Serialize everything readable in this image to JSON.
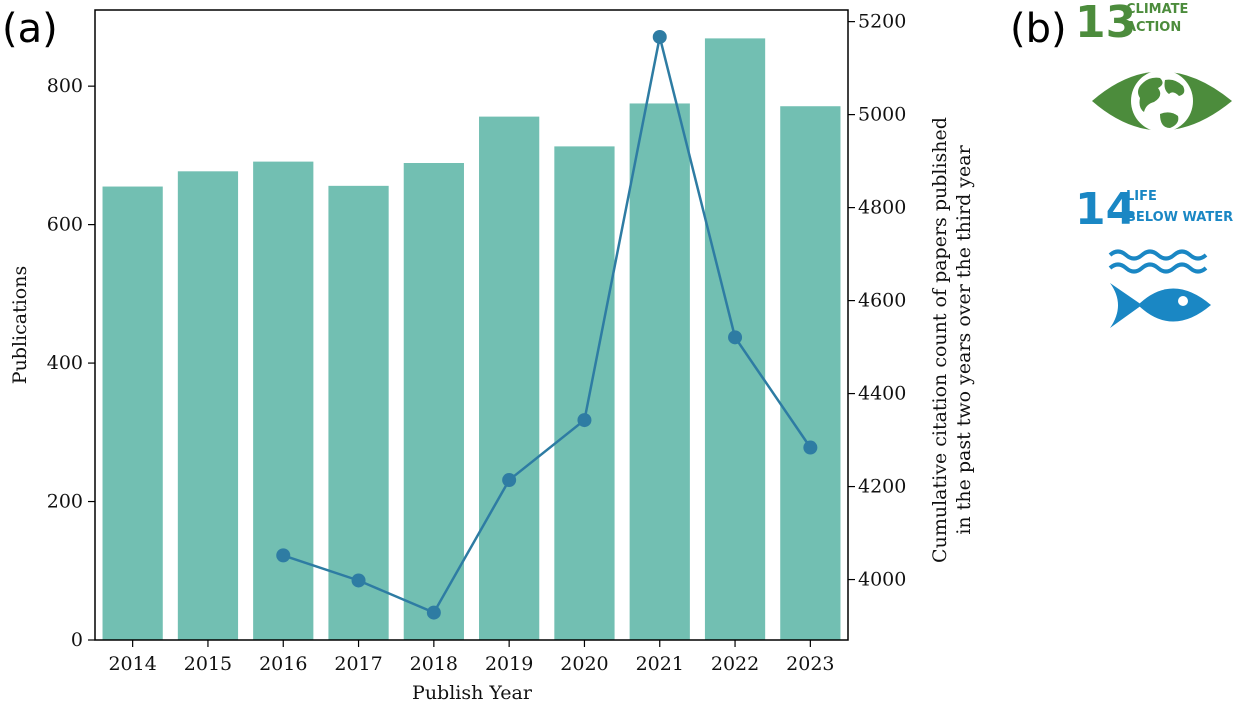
{
  "panels": {
    "a": "(a)",
    "b": "(b)"
  },
  "colors": {
    "bar": "#72bfb2",
    "line": "#2e7ca3",
    "sdg13": "#4c8c3c",
    "sdg14": "#1a87c4"
  },
  "sdg": [
    {
      "number": "13",
      "line1": "CLIMATE",
      "line2": "ACTION",
      "icon": "eye-globe-icon"
    },
    {
      "number": "14",
      "line1": "LIFE",
      "line2": "BELOW WATER",
      "icon": "fish-waves-icon"
    }
  ],
  "chart_data": {
    "type": "bar",
    "title": "",
    "xlabel": "Publish Year",
    "ylabel": "Publications",
    "y2label_line1": "Cumulative citation count of papers published",
    "y2label_line2": "in the past two years over the third year",
    "categories": [
      "2014",
      "2015",
      "2016",
      "2017",
      "2018",
      "2019",
      "2020",
      "2021",
      "2022",
      "2023"
    ],
    "series": [
      {
        "type": "bar",
        "axis": "left",
        "values": [
          655,
          677,
          691,
          656,
          689,
          756,
          713,
          775,
          869,
          771
        ]
      },
      {
        "type": "line",
        "axis": "right",
        "values": [
          null,
          null,
          4052,
          3998,
          3929,
          4214,
          4343,
          5167,
          4521,
          4284
        ]
      }
    ],
    "ylim": [
      0,
      910
    ],
    "y2lim": [
      3870,
      5225
    ],
    "yticks": [
      0,
      200,
      400,
      600,
      800
    ],
    "y2ticks": [
      4000,
      4200,
      4400,
      4600,
      4800,
      5000,
      5200
    ],
    "grid": false,
    "legend": "none"
  }
}
